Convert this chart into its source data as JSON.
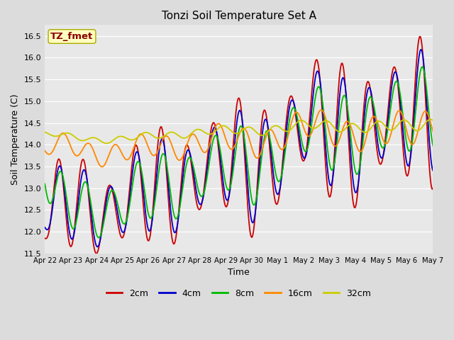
{
  "title": "Tonzi Soil Temperature Set A",
  "xlabel": "Time",
  "ylabel": "Soil Temperature (C)",
  "ylim": [
    11.5,
    16.75
  ],
  "annotation": "TZ_fmet",
  "annotation_color": "#8B0000",
  "annotation_bg": "#FFFFCC",
  "series": {
    "2cm": {
      "color": "#CC0000",
      "lw": 1.3
    },
    "4cm": {
      "color": "#0000CC",
      "lw": 1.3
    },
    "8cm": {
      "color": "#00BB00",
      "lw": 1.3
    },
    "16cm": {
      "color": "#FF8800",
      "lw": 1.3
    },
    "32cm": {
      "color": "#CCCC00",
      "lw": 1.3
    }
  },
  "xtick_labels": [
    "Apr 22",
    "Apr 23",
    "Apr 24",
    "Apr 25",
    "Apr 26",
    "Apr 27",
    "Apr 28",
    "Apr 29",
    "Apr 30",
    "May 1",
    "May 2",
    "May 3",
    "May 4",
    "May 5",
    "May 6",
    "May 7"
  ],
  "legend_labels": [
    "2cm",
    "4cm",
    "8cm",
    "16cm",
    "32cm"
  ],
  "legend_colors": [
    "#CC0000",
    "#0000CC",
    "#00BB00",
    "#FF8800",
    "#CCCC00"
  ]
}
